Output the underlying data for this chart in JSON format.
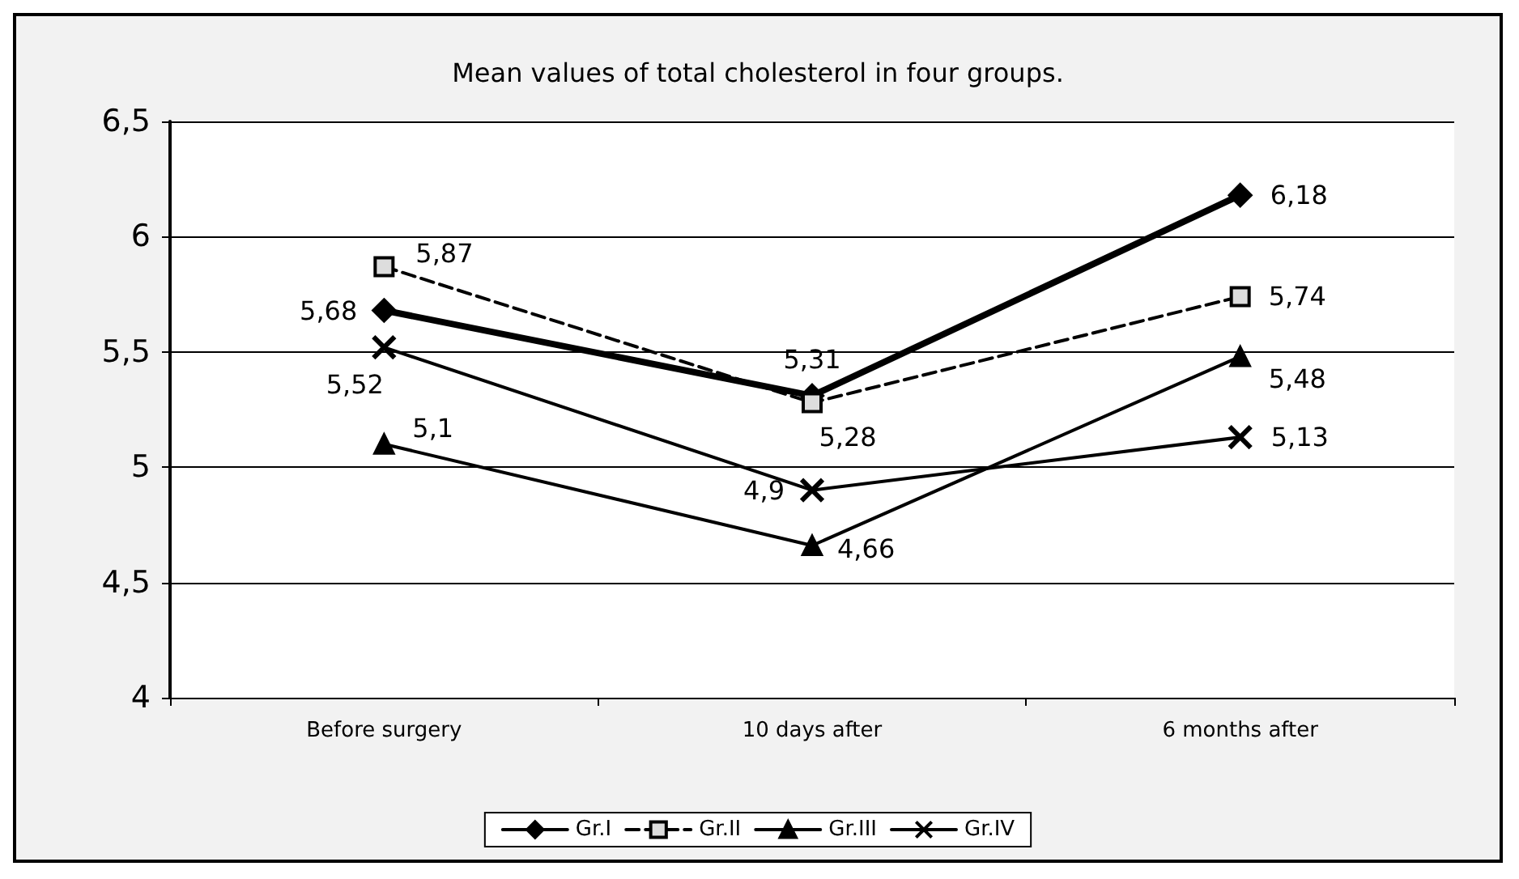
{
  "chart_data": {
    "type": "line",
    "title": "Mean values of total cholesterol in four groups.",
    "categories": [
      "Before surgery",
      "10 days after",
      "6 months after"
    ],
    "series": [
      {
        "name": "Gr.I",
        "color": "#000000",
        "values": [
          5.68,
          5.31,
          6.18
        ],
        "value_labels": [
          "5,68",
          "5,31",
          "6,18"
        ],
        "marker": "diamond",
        "line_style": "solid"
      },
      {
        "name": "Gr.II",
        "color": "#000000",
        "values": [
          5.87,
          5.28,
          5.74
        ],
        "value_labels": [
          "5,87",
          "5,28",
          "5,74"
        ],
        "marker": "square",
        "line_style": "dashed"
      },
      {
        "name": "Gr.III",
        "color": "#000000",
        "values": [
          5.1,
          4.66,
          5.48
        ],
        "value_labels": [
          "5,1",
          "4,66",
          "5,48"
        ],
        "marker": "triangle",
        "line_style": "solid"
      },
      {
        "name": "Gr.IV",
        "color": "#000000",
        "values": [
          5.52,
          4.9,
          5.13
        ],
        "value_labels": [
          "5,52",
          "4,9",
          "5,13"
        ],
        "marker": "cross",
        "line_style": "solid"
      }
    ],
    "ylim": [
      4,
      6.5
    ],
    "yticks": [
      4,
      {
        "value": 4.5,
        "label": "4,5"
      },
      5,
      {
        "value": 5.5,
        "label": "5,5"
      },
      6,
      {
        "value": 6.5,
        "label": "6,5"
      }
    ],
    "grid": "y",
    "legend": "bottom"
  }
}
